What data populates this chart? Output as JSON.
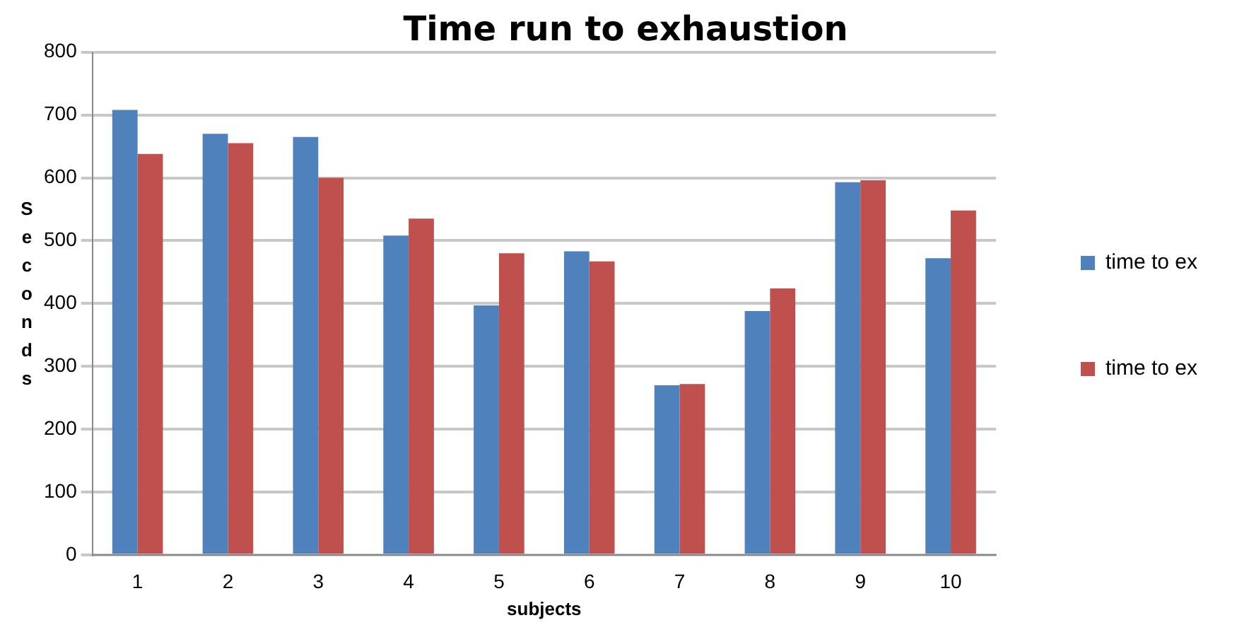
{
  "chart_data": {
    "type": "bar",
    "title": "Time run to exhaustion",
    "xlabel": "subjects",
    "ylabel": "Seconds",
    "categories": [
      "1",
      "2",
      "3",
      "4",
      "5",
      "6",
      "7",
      "8",
      "9",
      "10"
    ],
    "series": [
      {
        "name": "time to ex",
        "color": "#4f81bd",
        "values": [
          708,
          670,
          665,
          508,
          397,
          483,
          270,
          388,
          593,
          472
        ]
      },
      {
        "name": "time to ex",
        "color": "#c0504d",
        "values": [
          638,
          655,
          600,
          535,
          480,
          467,
          272,
          424,
          596,
          548
        ]
      }
    ],
    "ylim": [
      0,
      800
    ],
    "yticks": [
      0,
      100,
      200,
      300,
      400,
      500,
      600,
      700,
      800
    ],
    "grid": "y",
    "legend": "right"
  }
}
